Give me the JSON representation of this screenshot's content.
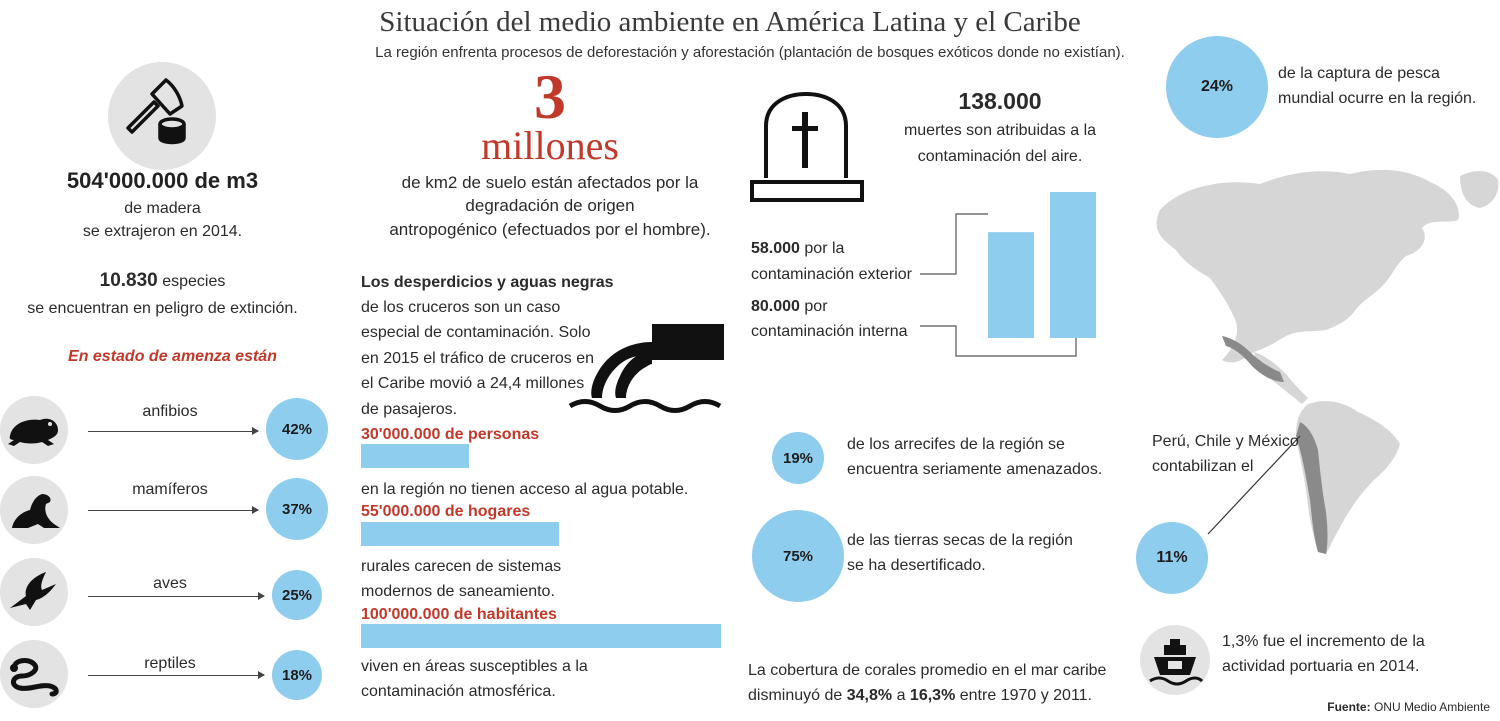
{
  "header": {
    "title": "Situación del medio ambiente en América Latina y el Caribe",
    "subtitle": "La región enfrenta procesos de deforestación y aforestación (plantación de bosques exóticos donde no existían)."
  },
  "wood": {
    "value": "504'000.000 de m3",
    "line1": "de madera",
    "line2": "se extrajeron en 2014."
  },
  "species": {
    "value": "10.830",
    "text1": "especies",
    "text2": "se encuentran en peligro de extinción."
  },
  "threat": {
    "heading": "En estado de amenza están",
    "items": [
      {
        "label": "anfibios",
        "percent": "42%",
        "icon": "frog-icon"
      },
      {
        "label": "mamíferos",
        "percent": "37%",
        "icon": "seal-icon"
      },
      {
        "label": "aves",
        "percent": "25%",
        "icon": "bird-icon"
      },
      {
        "label": "reptiles",
        "percent": "18%",
        "icon": "snake-icon"
      }
    ]
  },
  "soil": {
    "big": "3",
    "unit": "millones",
    "line1": "de km2 de suelo están afectados por la",
    "line2": "degradación de origen",
    "line3": "antropogénico (efectuados por el hombre)."
  },
  "cruise": {
    "heading": "Los desperdicios y aguas negras",
    "lines": [
      "de los cruceros son un caso",
      "especial de contaminación. Solo",
      "en 2015 el tráfico de cruceros en",
      "el Caribe movió a 24,4 millones",
      "de pasajeros."
    ]
  },
  "water_stats": [
    {
      "value": "30'000.000 de personas",
      "bar_fraction": 0.3,
      "lines": [
        "en la región no tienen acceso al agua potable."
      ]
    },
    {
      "value": "55'000.000 de hogares",
      "bar_fraction": 0.55,
      "lines": [
        "rurales carecen de sistemas",
        "modernos de saneamiento."
      ]
    },
    {
      "value": "100'000.000 de habitantes",
      "bar_fraction": 1.0,
      "lines": [
        "viven en áreas susceptibles a la",
        "contaminación atmosférica."
      ]
    }
  ],
  "deaths": {
    "value": "138.000",
    "line1": "muertes son atribuidas a la",
    "line2": "contaminación del aire.",
    "outdoor_value": "58.000",
    "outdoor_text1": "por la",
    "outdoor_text2": "contaminación exterior",
    "indoor_value": "80.000",
    "indoor_text1": "por",
    "indoor_text2": "contaminación interna"
  },
  "chart_data": {
    "type": "bar",
    "categories": [
      "contaminación exterior",
      "contaminación interna"
    ],
    "values": [
      58000,
      80000
    ]
  },
  "reefs": {
    "percent": "19%",
    "line1": "de los arrecifes de la región se",
    "line2": "encuentra seriamente amenazados."
  },
  "drylands": {
    "percent": "75%",
    "line1": "de las tierras secas de la región",
    "line2": "se ha desertificado."
  },
  "corals": {
    "line1": "La cobertura de corales promedio en el mar caribe",
    "pre": "disminuyó de",
    "from": "34,8%",
    "mid": "a",
    "to": "16,3%",
    "post": "entre 1970 y 2011."
  },
  "fishing": {
    "percent": "24%",
    "line1": "de la captura de pesca",
    "line2": "mundial ocurre en la región."
  },
  "peru": {
    "line1": "Perú, Chile y México",
    "line2": "contabilizan el",
    "percent": "11%"
  },
  "port": {
    "line1": "1,3% fue el incremento de la",
    "line2": "actividad portuaria en 2014."
  },
  "source": {
    "label": "Fuente:",
    "text": "ONU Medio Ambiente"
  },
  "colors": {
    "accent_red": "#c0392b",
    "blue": "#8fcdee",
    "grey": "#e3e3e3",
    "map": "#d6d6d6",
    "highlight": "#8a8a8a"
  }
}
